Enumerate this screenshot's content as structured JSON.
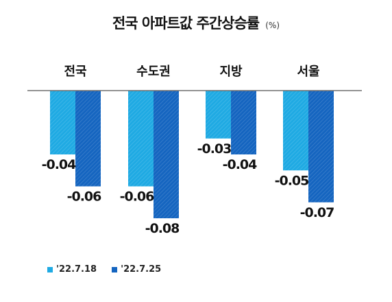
{
  "chart_data": {
    "type": "bar",
    "title": "전국 아파트값 주간상승률",
    "unit": "(%)",
    "categories": [
      "전국",
      "수도권",
      "지방",
      "서울"
    ],
    "series": [
      {
        "name": "'22.7.18",
        "values": [
          -0.04,
          -0.06,
          -0.03,
          -0.05
        ],
        "value_labels": [
          "-0.04",
          "-0.06",
          "-0.03",
          "-0.05"
        ],
        "color": "#1faae3"
      },
      {
        "name": "'22.7.25",
        "values": [
          -0.06,
          -0.08,
          -0.04,
          -0.07
        ],
        "value_labels": [
          "-0.06",
          "-0.08",
          "-0.04",
          "-0.07"
        ],
        "color": "#1565c0"
      }
    ],
    "ylim": [
      -0.08,
      0
    ],
    "grid": false,
    "legend_position": "bottom-left"
  }
}
